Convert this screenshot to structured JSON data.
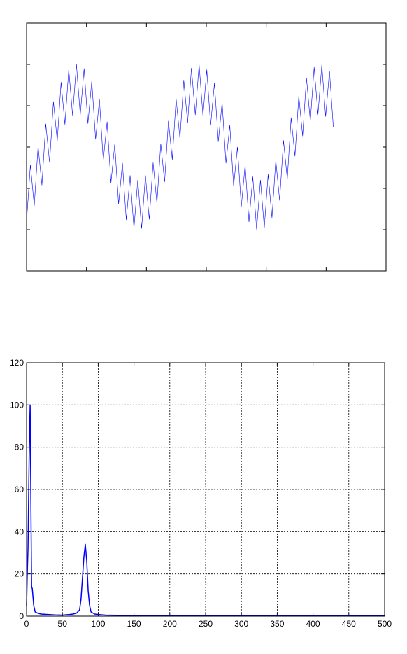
{
  "chart_data": [
    {
      "type": "line",
      "color": "#0000ff",
      "x": [
        0,
        0.064,
        0.128,
        0.192,
        0.256,
        0.32,
        0.384,
        0.448,
        0.512,
        0.576,
        0.64,
        0.704,
        0.768,
        0.832,
        0.896,
        0.96,
        1.024,
        1.088,
        1.152,
        1.216,
        1.28,
        1.344,
        1.408,
        1.472,
        1.536,
        1.6,
        1.664,
        1.728,
        1.792,
        1.856,
        1.92,
        1.984,
        2.048,
        2.112,
        2.176,
        2.24,
        2.304,
        2.368,
        2.432,
        2.496,
        2.56,
        2.624,
        2.688,
        2.752,
        2.816,
        2.88,
        2.944,
        3.008,
        3.072,
        3.136,
        3.2,
        3.264,
        3.328,
        3.392,
        3.456,
        3.52,
        3.584,
        3.648,
        3.712,
        3.776,
        3.84,
        3.904,
        3.968,
        4.032,
        4.096,
        4.16,
        4.224,
        4.288,
        4.352,
        4.416,
        4.48,
        4.544,
        4.608,
        4.672,
        4.736,
        4.8,
        4.864,
        4.928,
        4.992,
        5.056,
        5.12
      ],
      "values": [
        1.21,
        2.57,
        1.58,
        3.02,
        2.08,
        3.56,
        2.63,
        4.1,
        3.15,
        4.57,
        3.55,
        4.88,
        3.77,
        5.0,
        3.78,
        4.9,
        3.57,
        4.6,
        3.19,
        4.15,
        2.68,
        3.61,
        2.13,
        3.07,
        1.62,
        2.61,
        1.24,
        2.31,
        1.03,
        2.2,
        1.03,
        2.31,
        1.25,
        2.62,
        1.64,
        3.08,
        2.16,
        3.63,
        2.7,
        4.17,
        3.21,
        4.62,
        3.59,
        4.91,
        3.78,
        5.0,
        3.76,
        4.87,
        3.53,
        4.55,
        3.13,
        4.08,
        2.61,
        3.53,
        2.06,
        3.0,
        1.56,
        2.56,
        1.19,
        2.28,
        1.01,
        2.2,
        1.05,
        2.34,
        1.29,
        2.68,
        1.71,
        3.16,
        2.23,
        3.71,
        2.78,
        4.24,
        3.27,
        4.67,
        3.63,
        4.93,
        3.79,
        4.99,
        3.74,
        4.84,
        3.49
      ],
      "xlim": [
        0,
        6
      ],
      "ylim": [
        0,
        6
      ],
      "xticks": [
        1,
        2,
        3,
        4,
        5
      ],
      "yticks": [
        1,
        2,
        3,
        4,
        5
      ],
      "tick_labels": false,
      "grid": false
    },
    {
      "type": "line",
      "color": "#0000ff",
      "x": [
        0,
        1,
        2,
        3,
        4,
        5,
        6,
        7,
        8,
        10,
        12,
        15,
        20,
        30,
        40,
        50,
        60,
        65,
        70,
        74,
        76,
        78,
        80,
        82,
        84,
        86,
        88,
        90,
        95,
        100,
        110,
        150,
        200,
        300,
        400,
        500
      ],
      "values": [
        5,
        20,
        32,
        60,
        85,
        100,
        55,
        14,
        13,
        5,
        2,
        1.5,
        1,
        0.8,
        0.6,
        0.5,
        0.8,
        1,
        1.5,
        3,
        8,
        18,
        28,
        34,
        26,
        12,
        5,
        2,
        1,
        0.8,
        0.5,
        0.3,
        0.3,
        0.2,
        0.2,
        0.2
      ],
      "xlim": [
        0,
        500
      ],
      "ylim": [
        0,
        120
      ],
      "xticks": [
        0,
        50,
        100,
        150,
        200,
        250,
        300,
        350,
        400,
        450,
        500
      ],
      "yticks": [
        0,
        20,
        40,
        60,
        80,
        100,
        120
      ],
      "tick_labels": true,
      "grid": true
    }
  ]
}
